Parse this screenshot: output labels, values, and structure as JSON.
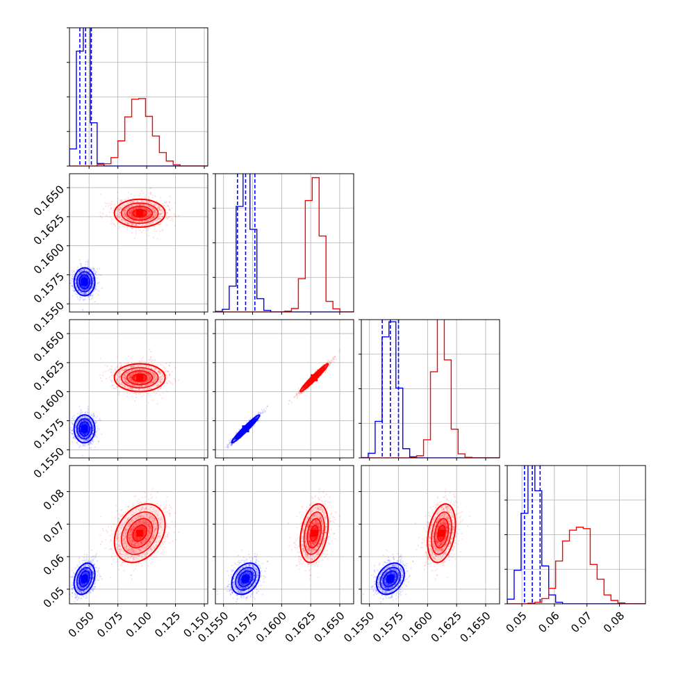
{
  "chart_data": {
    "type": "corner",
    "grid": true,
    "colors": {
      "primary": "#0000ff",
      "secondary": "#ff0000"
    },
    "series": [
      {
        "color": "#0000ff",
        "means": [
          0.046,
          0.1569,
          0.1568,
          0.0532
        ],
        "sigmas": [
          0.0045,
          0.0006,
          0.0006,
          0.0024
        ],
        "quantiles_16_50_84": [
          [
            0.042,
            0.047,
            0.052
          ],
          [
            0.1562,
            0.1569,
            0.1577
          ],
          [
            0.1561,
            0.1568,
            0.1575
          ],
          [
            0.0508,
            0.0532,
            0.0556
          ]
        ]
      },
      {
        "color": "#ff0000",
        "means": [
          0.094,
          0.1628,
          0.1612,
          0.0672
        ],
        "sigmas": [
          0.011,
          0.0006,
          0.0006,
          0.0045
        ]
      }
    ],
    "correlations": [
      [
        1,
        0,
        0,
        0.3
      ],
      [
        0,
        1,
        0.97,
        0.3
      ],
      [
        0,
        0.97,
        1,
        0.3
      ],
      [
        0.3,
        0.3,
        0.3,
        1
      ]
    ],
    "axes": [
      {
        "range": [
          0.033,
          0.153
        ],
        "ticks": [
          0.05,
          0.075,
          0.1,
          0.125,
          0.15
        ],
        "tick_labels": [
          "0.050",
          "0.075",
          "0.100",
          "0.125",
          "0.150"
        ]
      },
      {
        "range": [
          0.1543,
          0.1662
        ],
        "ticks": [
          0.155,
          0.1575,
          0.16,
          0.1625,
          0.165
        ],
        "tick_labels": [
          "0.1550",
          "0.1575",
          "0.1600",
          "0.1625",
          "0.1650"
        ]
      },
      {
        "range": [
          0.1543,
          0.1662
        ],
        "ticks": [
          0.155,
          0.1575,
          0.16,
          0.1625,
          0.165
        ],
        "tick_labels": [
          "0.1550",
          "0.1575",
          "0.1600",
          "0.1625",
          "0.1650"
        ]
      },
      {
        "range": [
          0.0455,
          0.088
        ],
        "ticks": [
          0.05,
          0.06,
          0.07,
          0.08
        ],
        "tick_labels": [
          "0.05",
          "0.06",
          "0.07",
          "0.08"
        ]
      }
    ]
  }
}
